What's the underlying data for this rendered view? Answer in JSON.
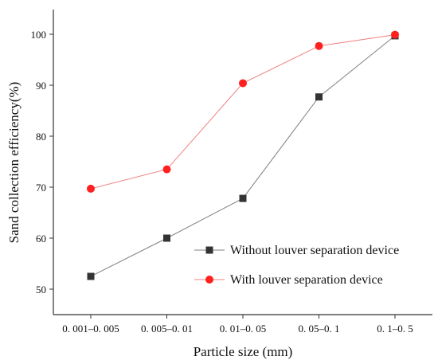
{
  "chart_data": {
    "type": "line",
    "categories": [
      "0. 001–0. 005",
      "0. 005–0. 01",
      "0. 01–0. 05",
      "0. 05–0. 1",
      "0. 1–0. 5"
    ],
    "series": [
      {
        "name": "Without louver separation device",
        "values": [
          52.5,
          60.0,
          67.8,
          87.7,
          99.7
        ],
        "color": "#808080",
        "marker": "square",
        "marker_color": "#333333"
      },
      {
        "name": "With louver separation device",
        "values": [
          69.7,
          73.5,
          90.4,
          97.7,
          99.9
        ],
        "color": "#f08080",
        "marker": "circle",
        "marker_color": "#ff2020"
      }
    ],
    "xlabel": "Particle size (mm)",
    "ylabel": "Sand collection efficiency(%)",
    "ylim": [
      45,
      105
    ],
    "yticks": [
      50,
      60,
      70,
      80,
      90,
      100
    ],
    "grid": false,
    "legend_position": "lower-right"
  }
}
